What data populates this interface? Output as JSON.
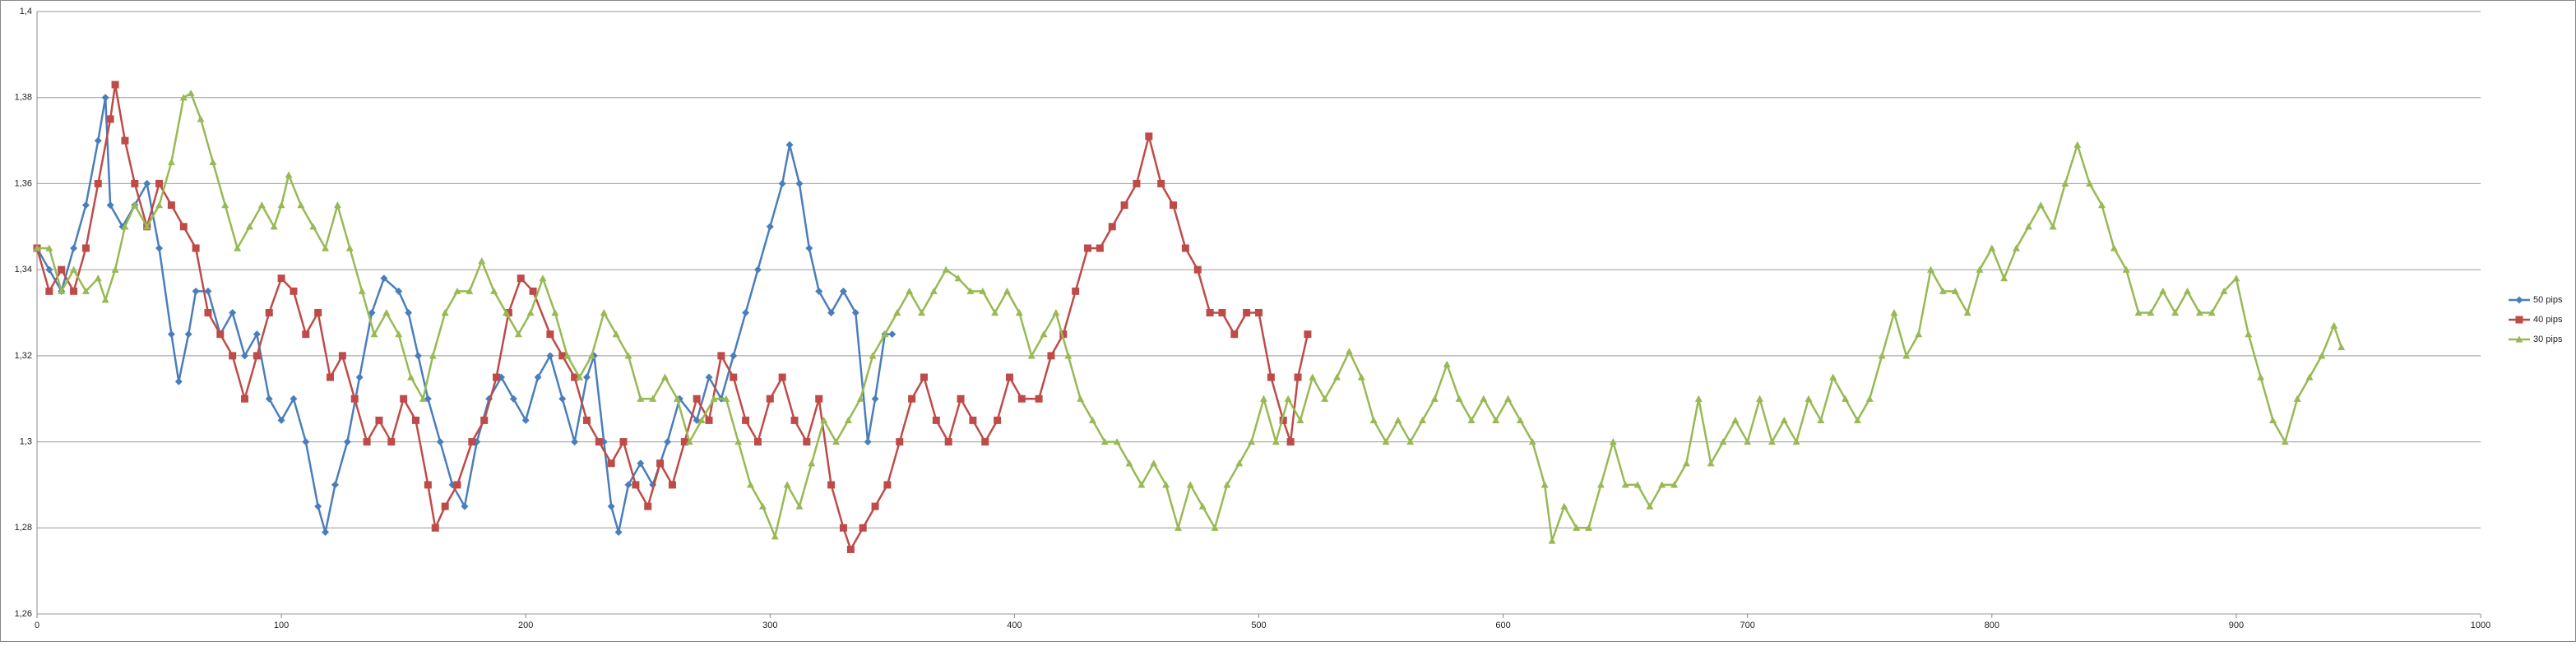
{
  "chart_data": {
    "type": "line",
    "xlim": [
      0,
      1000
    ],
    "xticks": [
      0,
      100,
      200,
      300,
      400,
      500,
      600,
      700,
      800,
      900,
      1000
    ],
    "ylim": [
      1.26,
      1.4
    ],
    "yticks": [
      {
        "value": 1.26,
        "label": "1,26"
      },
      {
        "value": 1.28,
        "label": "1,28"
      },
      {
        "value": 1.3,
        "label": "1,3"
      },
      {
        "value": 1.32,
        "label": "1,32"
      },
      {
        "value": 1.34,
        "label": "1,34"
      },
      {
        "value": 1.36,
        "label": "1,36"
      },
      {
        "value": 1.38,
        "label": "1,38"
      },
      {
        "value": 1.4,
        "label": "1,4"
      }
    ],
    "grid": true,
    "legend": "right",
    "series": [
      {
        "name": "50 pips",
        "color": "#4a7ebb",
        "marker": "diamond",
        "x": [
          0,
          5,
          10,
          15,
          20,
          25,
          28,
          30,
          35,
          40,
          45,
          50,
          55,
          58,
          62,
          65,
          70,
          75,
          80,
          85,
          90,
          95,
          100,
          105,
          110,
          115,
          118,
          122,
          127,
          132,
          137,
          142,
          148,
          152,
          156,
          160,
          165,
          170,
          175,
          180,
          185,
          190,
          195,
          200,
          205,
          210,
          215,
          220,
          225,
          228,
          232,
          235,
          238,
          242,
          247,
          252,
          258,
          263,
          270,
          275,
          280,
          285,
          290,
          295,
          300,
          305,
          308,
          312,
          316,
          320,
          325,
          330,
          335,
          340,
          343,
          347,
          350
        ],
        "values": [
          1.345,
          1.34,
          1.335,
          1.345,
          1.355,
          1.37,
          1.38,
          1.355,
          1.35,
          1.355,
          1.36,
          1.345,
          1.325,
          1.314,
          1.325,
          1.335,
          1.335,
          1.325,
          1.33,
          1.32,
          1.325,
          1.31,
          1.305,
          1.31,
          1.3,
          1.285,
          1.279,
          1.29,
          1.3,
          1.315,
          1.33,
          1.338,
          1.335,
          1.33,
          1.32,
          1.31,
          1.3,
          1.29,
          1.285,
          1.3,
          1.31,
          1.315,
          1.31,
          1.305,
          1.315,
          1.32,
          1.31,
          1.3,
          1.315,
          1.32,
          1.3,
          1.285,
          1.279,
          1.29,
          1.295,
          1.29,
          1.3,
          1.31,
          1.305,
          1.315,
          1.31,
          1.32,
          1.33,
          1.34,
          1.35,
          1.36,
          1.369,
          1.36,
          1.345,
          1.335,
          1.33,
          1.335,
          1.33,
          1.3,
          1.31,
          1.325,
          1.325
        ]
      },
      {
        "name": "40 pips",
        "color": "#be4b48",
        "marker": "square",
        "x": [
          0,
          5,
          10,
          15,
          20,
          25,
          30,
          32,
          36,
          40,
          45,
          50,
          55,
          60,
          65,
          70,
          75,
          80,
          85,
          90,
          95,
          100,
          105,
          110,
          115,
          120,
          125,
          130,
          135,
          140,
          145,
          150,
          155,
          160,
          163,
          167,
          172,
          178,
          183,
          188,
          193,
          198,
          203,
          210,
          215,
          220,
          225,
          230,
          235,
          240,
          245,
          250,
          255,
          260,
          265,
          270,
          275,
          280,
          285,
          290,
          295,
          300,
          305,
          310,
          315,
          320,
          325,
          330,
          333,
          338,
          343,
          348,
          353,
          358,
          363,
          368,
          373,
          378,
          383,
          388,
          393,
          398,
          403,
          410,
          415,
          420,
          425,
          430,
          435,
          440,
          445,
          450,
          455,
          460,
          465,
          470,
          475,
          480,
          485,
          490,
          495,
          500,
          505,
          510,
          513,
          516,
          520
        ],
        "values": [
          1.345,
          1.335,
          1.34,
          1.335,
          1.345,
          1.36,
          1.375,
          1.383,
          1.37,
          1.36,
          1.35,
          1.36,
          1.355,
          1.35,
          1.345,
          1.33,
          1.325,
          1.32,
          1.31,
          1.32,
          1.33,
          1.338,
          1.335,
          1.325,
          1.33,
          1.315,
          1.32,
          1.31,
          1.3,
          1.305,
          1.3,
          1.31,
          1.305,
          1.29,
          1.28,
          1.285,
          1.29,
          1.3,
          1.305,
          1.315,
          1.33,
          1.338,
          1.335,
          1.325,
          1.32,
          1.315,
          1.305,
          1.3,
          1.295,
          1.3,
          1.29,
          1.285,
          1.295,
          1.29,
          1.3,
          1.31,
          1.305,
          1.32,
          1.315,
          1.305,
          1.3,
          1.31,
          1.315,
          1.305,
          1.3,
          1.31,
          1.29,
          1.28,
          1.275,
          1.28,
          1.285,
          1.29,
          1.3,
          1.31,
          1.315,
          1.305,
          1.3,
          1.31,
          1.305,
          1.3,
          1.305,
          1.315,
          1.31,
          1.31,
          1.32,
          1.325,
          1.335,
          1.345,
          1.345,
          1.35,
          1.355,
          1.36,
          1.371,
          1.36,
          1.355,
          1.345,
          1.34,
          1.33,
          1.33,
          1.325,
          1.33,
          1.33,
          1.315,
          1.305,
          1.3,
          1.315,
          1.325
        ]
      },
      {
        "name": "30 pips",
        "color": "#98b954",
        "marker": "triangle",
        "x": [
          0,
          5,
          10,
          15,
          20,
          25,
          28,
          32,
          36,
          40,
          45,
          50,
          55,
          60,
          63,
          67,
          72,
          77,
          82,
          87,
          92,
          97,
          100,
          103,
          108,
          113,
          118,
          123,
          128,
          133,
          138,
          143,
          148,
          153,
          158,
          162,
          167,
          172,
          177,
          182,
          187,
          192,
          197,
          202,
          207,
          212,
          217,
          222,
          227,
          232,
          237,
          242,
          247,
          252,
          257,
          262,
          267,
          272,
          277,
          282,
          287,
          292,
          297,
          302,
          307,
          312,
          317,
          322,
          327,
          332,
          337,
          342,
          347,
          352,
          357,
          362,
          367,
          372,
          377,
          382,
          387,
          392,
          397,
          402,
          407,
          412,
          417,
          422,
          427,
          432,
          437,
          442,
          447,
          452,
          457,
          462,
          467,
          472,
          477,
          482,
          487,
          492,
          497,
          502,
          507,
          512,
          517,
          522,
          527,
          532,
          537,
          542,
          547,
          552,
          557,
          562,
          567,
          572,
          577,
          582,
          587,
          592,
          597,
          602,
          607,
          612,
          617,
          620,
          625,
          630,
          635,
          640,
          645,
          650,
          655,
          660,
          665,
          670,
          675,
          680,
          685,
          690,
          695,
          700,
          705,
          710,
          715,
          720,
          725,
          730,
          735,
          740,
          745,
          750,
          755,
          760,
          765,
          770,
          775,
          780,
          785,
          790,
          795,
          800,
          805,
          810,
          815,
          820,
          825,
          830,
          835,
          840,
          845,
          850,
          855,
          860,
          865,
          870,
          875,
          880,
          885,
          890,
          895,
          900,
          905,
          910,
          915,
          920,
          925,
          930,
          935,
          940,
          943
        ],
        "values": [
          1.345,
          1.345,
          1.335,
          1.34,
          1.335,
          1.338,
          1.333,
          1.34,
          1.35,
          1.355,
          1.35,
          1.355,
          1.365,
          1.38,
          1.381,
          1.375,
          1.365,
          1.355,
          1.345,
          1.35,
          1.355,
          1.35,
          1.355,
          1.362,
          1.355,
          1.35,
          1.345,
          1.355,
          1.345,
          1.335,
          1.325,
          1.33,
          1.325,
          1.315,
          1.31,
          1.32,
          1.33,
          1.335,
          1.335,
          1.342,
          1.335,
          1.33,
          1.325,
          1.33,
          1.338,
          1.33,
          1.32,
          1.315,
          1.32,
          1.33,
          1.325,
          1.32,
          1.31,
          1.31,
          1.315,
          1.31,
          1.3,
          1.305,
          1.31,
          1.31,
          1.3,
          1.29,
          1.285,
          1.278,
          1.29,
          1.285,
          1.295,
          1.305,
          1.3,
          1.305,
          1.31,
          1.32,
          1.325,
          1.33,
          1.335,
          1.33,
          1.335,
          1.34,
          1.338,
          1.335,
          1.335,
          1.33,
          1.335,
          1.33,
          1.32,
          1.325,
          1.33,
          1.32,
          1.31,
          1.305,
          1.3,
          1.3,
          1.295,
          1.29,
          1.295,
          1.29,
          1.28,
          1.29,
          1.285,
          1.28,
          1.29,
          1.295,
          1.3,
          1.31,
          1.3,
          1.31,
          1.305,
          1.315,
          1.31,
          1.315,
          1.321,
          1.315,
          1.305,
          1.3,
          1.305,
          1.3,
          1.305,
          1.31,
          1.318,
          1.31,
          1.305,
          1.31,
          1.305,
          1.31,
          1.305,
          1.3,
          1.29,
          1.277,
          1.285,
          1.28,
          1.28,
          1.29,
          1.3,
          1.29,
          1.29,
          1.285,
          1.29,
          1.29,
          1.295,
          1.31,
          1.295,
          1.3,
          1.305,
          1.3,
          1.31,
          1.3,
          1.305,
          1.3,
          1.31,
          1.305,
          1.315,
          1.31,
          1.305,
          1.31,
          1.32,
          1.33,
          1.32,
          1.325,
          1.34,
          1.335,
          1.335,
          1.33,
          1.34,
          1.345,
          1.338,
          1.345,
          1.35,
          1.355,
          1.35,
          1.36,
          1.369,
          1.36,
          1.355,
          1.345,
          1.34,
          1.33,
          1.33,
          1.335,
          1.33,
          1.335,
          1.33,
          1.33,
          1.335,
          1.338,
          1.325,
          1.315,
          1.305,
          1.3,
          1.31,
          1.315,
          1.32,
          1.327,
          1.322
        ]
      }
    ]
  }
}
